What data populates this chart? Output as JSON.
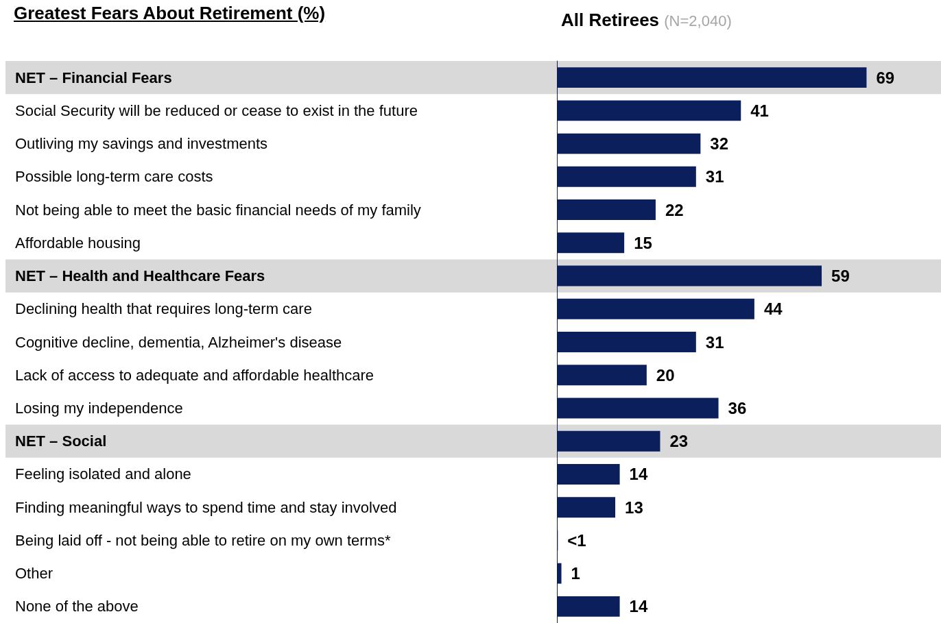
{
  "chart_data": {
    "type": "bar",
    "orientation": "horizontal",
    "title": "Greatest Fears About Retirement (%)",
    "subtitle": "All Retirees (N=2,040)",
    "categories": [
      "NET – Financial Fears",
      "Social Security will be reduced or cease to exist in the future",
      "Outliving my savings and investments",
      "Possible long-term care costs",
      "Not being able to meet the basic financial needs of my family",
      "Affordable housing",
      "NET – Health and Healthcare Fears",
      "Declining health that requires long-term care",
      "Cognitive decline, dementia, Alzheimer's disease",
      "Lack of access to adequate and affordable healthcare",
      "Losing my independence",
      "NET – Social",
      "Feeling isolated and alone",
      "Finding meaningful ways to spend time and stay involved",
      "Being laid off - not being able to retire on my own terms*",
      "Other",
      "None of the above"
    ],
    "values": [
      69,
      41,
      32,
      31,
      22,
      15,
      59,
      44,
      31,
      20,
      36,
      23,
      14,
      13,
      0.2,
      1,
      14
    ],
    "value_labels": [
      "69",
      "41",
      "32",
      "31",
      "22",
      "15",
      "59",
      "44",
      "31",
      "20",
      "36",
      "23",
      "14",
      "13",
      "<1",
      "1",
      "14"
    ],
    "color": "#0b1f5c",
    "bands": [
      {
        "axis": "y",
        "from": "NET – Financial Fears",
        "to": "NET – Financial Fears",
        "color": "#d9d9d9"
      },
      {
        "axis": "y",
        "from": "NET – Health and Healthcare Fears",
        "to": "NET – Health and Healthcare Fears",
        "color": "#d9d9d9"
      },
      {
        "axis": "y",
        "from": "NET – Social",
        "to": "NET – Social",
        "color": "#d9d9d9"
      }
    ],
    "grid": false
  }
}
